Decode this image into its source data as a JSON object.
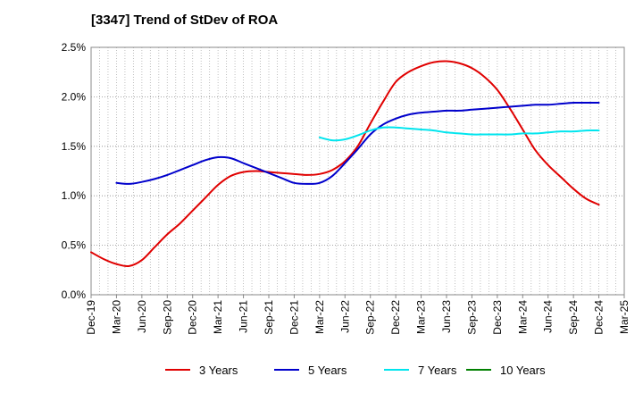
{
  "chart_data": {
    "type": "line",
    "title": "[3347]  Trend of StDev of ROA",
    "xlabel": "",
    "ylabel": "",
    "ylim": [
      0,
      2.5
    ],
    "y_ticks": [
      "0.0%",
      "0.5%",
      "1.0%",
      "1.5%",
      "2.0%",
      "2.5%"
    ],
    "y_tick_values": [
      0,
      0.5,
      1.0,
      1.5,
      2.0,
      2.5
    ],
    "x_ticks": [
      "Dec-19",
      "Mar-20",
      "Jun-20",
      "Sep-20",
      "Dec-20",
      "Mar-21",
      "Jun-21",
      "Sep-21",
      "Dec-21",
      "Mar-22",
      "Jun-22",
      "Sep-22",
      "Dec-22",
      "Mar-23",
      "Jun-23",
      "Sep-23",
      "Dec-23",
      "Mar-24",
      "Jun-24",
      "Sep-24",
      "Dec-24",
      "Mar-25"
    ],
    "grid": true,
    "legend_position": "bottom",
    "series": [
      {
        "name": "3 Years",
        "color": "#e00000",
        "x": [
          0,
          0.5,
          1,
          1.5,
          2,
          2.5,
          3,
          3.5,
          4,
          4.5,
          5,
          5.5,
          6,
          6.5,
          7,
          7.5,
          8,
          8.5,
          9,
          9.5,
          10,
          10.5,
          11,
          11.5,
          12,
          12.5,
          13,
          13.5,
          14,
          14.5,
          15,
          15.5,
          16,
          16.5,
          17,
          17.5,
          18,
          18.5,
          19,
          19.5,
          20
        ],
        "values": [
          0.43,
          0.36,
          0.31,
          0.29,
          0.35,
          0.48,
          0.61,
          0.72,
          0.85,
          0.98,
          1.11,
          1.2,
          1.24,
          1.25,
          1.24,
          1.23,
          1.22,
          1.21,
          1.22,
          1.26,
          1.35,
          1.5,
          1.73,
          1.95,
          2.15,
          2.25,
          2.31,
          2.35,
          2.36,
          2.34,
          2.29,
          2.2,
          2.07,
          1.88,
          1.67,
          1.46,
          1.31,
          1.19,
          1.07,
          0.97,
          0.91
        ]
      },
      {
        "name": "5 Years",
        "color": "#0000cc",
        "x": [
          1,
          1.5,
          2,
          2.5,
          3,
          3.5,
          4,
          4.5,
          5,
          5.5,
          6,
          6.5,
          7,
          7.5,
          8,
          8.5,
          9,
          9.5,
          10,
          10.5,
          11,
          11.5,
          12,
          12.5,
          13,
          13.5,
          14,
          14.5,
          15,
          15.5,
          16,
          16.5,
          17,
          17.5,
          18,
          18.5,
          19,
          19.5,
          20
        ],
        "values": [
          1.13,
          1.12,
          1.14,
          1.17,
          1.21,
          1.26,
          1.31,
          1.36,
          1.39,
          1.38,
          1.33,
          1.28,
          1.23,
          1.18,
          1.13,
          1.12,
          1.13,
          1.2,
          1.33,
          1.47,
          1.62,
          1.72,
          1.78,
          1.82,
          1.84,
          1.85,
          1.86,
          1.86,
          1.87,
          1.88,
          1.89,
          1.9,
          1.91,
          1.92,
          1.92,
          1.93,
          1.94,
          1.94,
          1.94
        ]
      },
      {
        "name": "7 Years",
        "color": "#00e5ee",
        "x": [
          9,
          9.5,
          10,
          10.5,
          11,
          11.5,
          12,
          12.5,
          13,
          13.5,
          14,
          14.5,
          15,
          15.5,
          16,
          16.5,
          17,
          17.5,
          18,
          18.5,
          19,
          19.5,
          20
        ],
        "values": [
          1.59,
          1.56,
          1.57,
          1.61,
          1.66,
          1.69,
          1.69,
          1.68,
          1.67,
          1.66,
          1.64,
          1.63,
          1.62,
          1.62,
          1.62,
          1.62,
          1.63,
          1.63,
          1.64,
          1.65,
          1.65,
          1.66,
          1.66
        ]
      },
      {
        "name": "10 Years",
        "color": "#008000",
        "x": [],
        "values": []
      }
    ]
  }
}
